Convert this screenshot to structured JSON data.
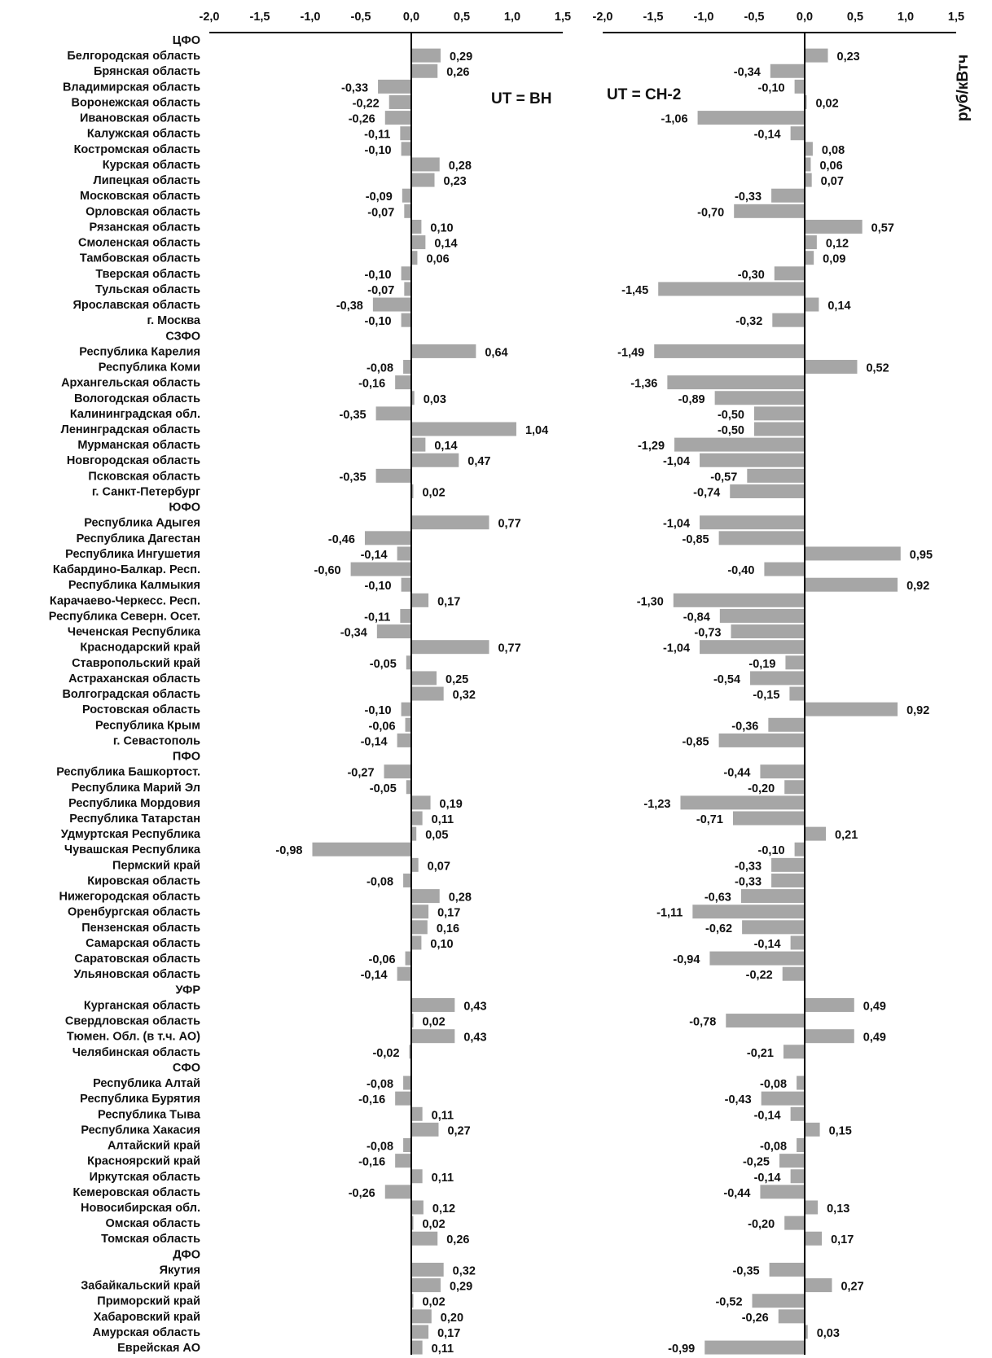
{
  "chart_data": {
    "type": "bar",
    "orientation": "horizontal",
    "categories": [
      "ЦФО",
      "Белгородская область",
      "Брянская область",
      "Владимирская область",
      "Воронежская область",
      "Ивановская область",
      "Калужская область",
      "Костромская область",
      "Курская область",
      "Липецкая область",
      "Московская область",
      "Орловская область",
      "Рязанская область",
      "Смоленская область",
      "Тамбовская область",
      "Тверская область",
      "Тульская область",
      "Ярославская область",
      "г. Москва",
      "СЗФО",
      "Республика Карелия",
      "Республика Коми",
      "Архангельская область",
      "Вологодская область",
      "Калининградская обл.",
      "Ленинградская область",
      "Мурманская область",
      "Новгородская область",
      "Псковская область",
      "г. Санкт-Петербург",
      "ЮФО",
      "Республика Адыгея",
      "Республика Дагестан",
      "Республика Ингушетия",
      "Кабардино-Балкар. Респ.",
      "Республика Калмыкия",
      "Карачаево-Черкесс. Респ.",
      "Республика Северн. Осет.",
      "Чеченская Республика",
      "Краснодарский край",
      "Ставропольский край",
      "Астраханская область",
      "Волгоградская область",
      "Ростовская область",
      "Республика Крым",
      "г. Севастополь",
      "ПФО",
      "Республика Башкортост.",
      "Республика Марий Эл",
      "Республика Мордовия",
      "Республика Татарстан",
      "Удмуртская Республика",
      "Чувашская Республика",
      "Пермский край",
      "Кировская область",
      "Нижегородская область",
      "Оренбургская область",
      "Пензенская область",
      "Самарская область",
      "Саратовская область",
      "Ульяновская область",
      "УФР",
      "Курганская область",
      "Свердловская область",
      "Тюмен. Обл. (в т.ч. АО)",
      "Челябинская область",
      "СФО",
      "Республика Алтай",
      "Республика Бурятия",
      "Республика Тыва",
      "Республика Хакасия",
      "Алтайский край",
      "Красноярский край",
      "Иркутская область",
      "Кемеровская область",
      "Новосибирская обл.",
      "Омская область",
      "Томская область",
      "ДФО",
      "Якутия",
      "Забайкальский край",
      "Приморский край",
      "Хабаровский край",
      "Амурская область",
      "Еврейская АО"
    ],
    "series": [
      {
        "name": "UT = ВН",
        "values": [
          null,
          0.29,
          0.26,
          -0.33,
          -0.22,
          -0.26,
          -0.11,
          -0.1,
          0.28,
          0.23,
          -0.09,
          -0.07,
          0.1,
          0.14,
          0.06,
          -0.1,
          -0.07,
          -0.38,
          -0.1,
          null,
          0.64,
          -0.08,
          -0.16,
          0.03,
          -0.35,
          1.04,
          0.14,
          0.47,
          -0.35,
          0.02,
          null,
          0.77,
          -0.46,
          -0.14,
          -0.6,
          -0.1,
          0.17,
          -0.11,
          -0.34,
          0.77,
          -0.05,
          0.25,
          0.32,
          -0.1,
          -0.06,
          -0.14,
          null,
          -0.27,
          -0.05,
          0.19,
          0.11,
          0.05,
          -0.98,
          0.07,
          -0.08,
          0.28,
          0.17,
          0.16,
          0.1,
          -0.06,
          -0.14,
          null,
          0.43,
          0.02,
          0.43,
          -0.02,
          null,
          -0.08,
          -0.16,
          0.11,
          0.27,
          -0.08,
          -0.16,
          0.11,
          -0.26,
          0.12,
          0.02,
          0.26,
          null,
          0.32,
          0.29,
          0.02,
          0.2,
          0.17,
          0.11
        ]
      },
      {
        "name": "UT = СН-2",
        "values": [
          null,
          0.23,
          -0.34,
          -0.1,
          0.02,
          -1.06,
          -0.14,
          0.08,
          0.06,
          0.07,
          -0.33,
          -0.7,
          0.57,
          0.12,
          0.09,
          -0.3,
          -1.45,
          0.14,
          -0.32,
          null,
          -1.49,
          0.52,
          -1.36,
          -0.89,
          -0.5,
          -0.5,
          -1.29,
          -1.04,
          -0.57,
          -0.74,
          null,
          -1.04,
          -0.85,
          0.95,
          -0.4,
          0.92,
          -1.3,
          -0.84,
          -0.73,
          -1.04,
          -0.19,
          -0.54,
          -0.15,
          0.92,
          -0.36,
          -0.85,
          null,
          -0.44,
          -0.2,
          -1.23,
          -0.71,
          0.21,
          -0.1,
          -0.33,
          -0.33,
          -0.63,
          -1.11,
          -0.62,
          -0.14,
          -0.94,
          -0.22,
          null,
          0.49,
          -0.78,
          0.49,
          -0.21,
          null,
          -0.08,
          -0.43,
          -0.14,
          0.15,
          -0.08,
          -0.25,
          -0.14,
          -0.44,
          0.13,
          -0.2,
          0.17,
          null,
          -0.35,
          0.27,
          -0.52,
          -0.26,
          0.03,
          -0.99
        ]
      }
    ],
    "xlim": [
      -2.0,
      1.5
    ],
    "xticks": [
      "-2,0",
      "-1,5",
      "-1,0",
      "-0,5",
      "0,0",
      "0,5",
      "1,0",
      "1,5"
    ],
    "annotations": [
      "UT = ВН",
      "UT = СН-2"
    ],
    "unit_label": "руб/кВтч",
    "bar_color": "#a6a6a6",
    "decimal_separator": ","
  }
}
